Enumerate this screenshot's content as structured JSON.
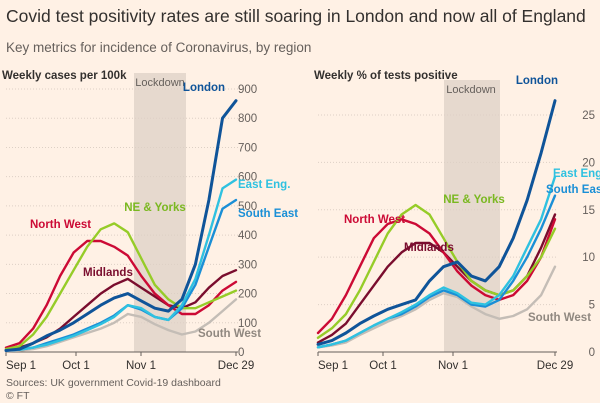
{
  "header": {
    "title": "Covid test positivity rates are still soaring in London and now all of England",
    "subtitle": "Key metrics for incidence of Coronavirus, by region"
  },
  "footer": {
    "source": "Sources: UK government Covid-19 dashboard",
    "credit": "© FT"
  },
  "colors": {
    "background": "#fff1e5",
    "lockdown_band": "#e6d9ce",
    "London": "#0f5499",
    "East Eng.": "#2fc1e0",
    "South East": "#1a8fd6",
    "NE & Yorks": "#96cc28",
    "North West": "#cc0a35",
    "Midlands": "#7a0d2e",
    "South West": "#c4bdb6"
  },
  "chart_data": [
    {
      "type": "line",
      "title": "Weekly cases per 100k",
      "annotation": "Lockdown",
      "x_ticks": [
        "Sep 1",
        "Oct 1",
        "Nov 1",
        "Dec 29"
      ],
      "y_ticks": [
        0,
        100,
        200,
        300,
        400,
        500,
        600,
        700,
        800,
        900
      ],
      "ylim": [
        0,
        900
      ],
      "x": [
        "Sep 1",
        "Sep 8",
        "Sep 15",
        "Sep 22",
        "Sep 29",
        "Oct 6",
        "Oct 13",
        "Oct 20",
        "Oct 27",
        "Nov 3",
        "Nov 10",
        "Nov 17",
        "Nov 24",
        "Dec 1",
        "Dec 8",
        "Dec 15",
        "Dec 22",
        "Dec 29"
      ],
      "series": [
        {
          "name": "London",
          "values": [
            5,
            10,
            30,
            55,
            75,
            100,
            130,
            160,
            185,
            200,
            175,
            150,
            140,
            180,
            300,
            520,
            800,
            860
          ]
        },
        {
          "name": "East Eng.",
          "values": [
            5,
            8,
            15,
            25,
            40,
            55,
            75,
            95,
            120,
            160,
            150,
            120,
            110,
            160,
            250,
            400,
            560,
            590
          ]
        },
        {
          "name": "South East",
          "values": [
            5,
            8,
            15,
            30,
            45,
            60,
            80,
            100,
            125,
            160,
            145,
            120,
            110,
            150,
            230,
            360,
            490,
            520
          ]
        },
        {
          "name": "NE & Yorks",
          "values": [
            10,
            20,
            60,
            120,
            200,
            280,
            360,
            420,
            440,
            410,
            320,
            230,
            180,
            150,
            150,
            170,
            190,
            210
          ]
        },
        {
          "name": "North West",
          "values": [
            15,
            30,
            80,
            160,
            260,
            340,
            380,
            380,
            360,
            330,
            260,
            200,
            160,
            130,
            130,
            160,
            210,
            240
          ]
        },
        {
          "name": "Midlands",
          "values": [
            10,
            15,
            30,
            50,
            80,
            120,
            160,
            200,
            230,
            250,
            220,
            190,
            160,
            150,
            170,
            220,
            260,
            280
          ]
        },
        {
          "name": "South West",
          "values": [
            3,
            5,
            10,
            20,
            35,
            50,
            65,
            80,
            100,
            130,
            120,
            95,
            75,
            60,
            70,
            100,
            140,
            180
          ]
        }
      ]
    },
    {
      "type": "line",
      "title": "Weekly % of tests positive",
      "annotation": "Lockdown",
      "x_ticks": [
        "Sep 1",
        "Oct 1",
        "Nov 1",
        "Dec 29"
      ],
      "y_ticks": [
        0,
        5,
        10,
        15,
        20,
        25
      ],
      "ylim": [
        0,
        27
      ],
      "x": [
        "Sep 1",
        "Sep 8",
        "Sep 15",
        "Sep 22",
        "Sep 29",
        "Oct 6",
        "Oct 13",
        "Oct 20",
        "Oct 27",
        "Nov 3",
        "Nov 10",
        "Nov 17",
        "Nov 24",
        "Dec 1",
        "Dec 8",
        "Dec 15",
        "Dec 22",
        "Dec 29"
      ],
      "series": [
        {
          "name": "London",
          "values": [
            0.8,
            1.2,
            2.0,
            3.0,
            3.8,
            4.5,
            5.0,
            5.5,
            7.5,
            9.0,
            9.5,
            8.0,
            7.5,
            9.0,
            12.0,
            16.0,
            21.0,
            26.5
          ]
        },
        {
          "name": "East Eng.",
          "values": [
            0.5,
            0.8,
            1.2,
            2.0,
            2.8,
            3.5,
            4.2,
            5.0,
            6.0,
            6.8,
            6.2,
            5.2,
            5.0,
            6.0,
            8.0,
            11.0,
            14.0,
            18.5
          ]
        },
        {
          "name": "South East",
          "values": [
            0.5,
            0.8,
            1.2,
            2.0,
            2.8,
            3.5,
            4.0,
            4.8,
            5.8,
            6.5,
            6.0,
            5.0,
            4.8,
            5.5,
            7.5,
            10.0,
            13.0,
            16.5
          ]
        },
        {
          "name": "NE & Yorks",
          "values": [
            1.5,
            2.5,
            4.0,
            6.5,
            9.5,
            12.5,
            14.5,
            15.5,
            14.5,
            12.0,
            9.5,
            7.5,
            6.5,
            6.0,
            6.5,
            8.0,
            10.0,
            13.0
          ]
        },
        {
          "name": "North West",
          "values": [
            2.0,
            3.5,
            6.0,
            9.0,
            12.0,
            13.5,
            14.0,
            13.5,
            12.5,
            10.5,
            8.5,
            7.0,
            6.0,
            5.5,
            6.0,
            7.5,
            10.0,
            14.0
          ]
        },
        {
          "name": "Midlands",
          "values": [
            1.0,
            1.8,
            3.0,
            5.0,
            7.0,
            9.0,
            10.5,
            11.5,
            11.5,
            10.5,
            9.0,
            7.5,
            6.5,
            6.0,
            6.5,
            8.0,
            11.0,
            14.5
          ]
        },
        {
          "name": "South West",
          "values": [
            0.5,
            0.7,
            1.0,
            1.8,
            2.5,
            3.2,
            3.8,
            4.5,
            5.5,
            6.2,
            5.8,
            4.8,
            4.0,
            3.5,
            3.8,
            4.5,
            6.0,
            9.0
          ]
        }
      ]
    }
  ],
  "labels": {
    "left": [
      {
        "text": "London",
        "color": "#0f5499"
      },
      {
        "text": "East Eng.",
        "color": "#2fc1e0"
      },
      {
        "text": "South East",
        "color": "#1a8fd6"
      },
      {
        "text": "NE & Yorks",
        "color": "#7ab820"
      },
      {
        "text": "North West",
        "color": "#cc0a35"
      },
      {
        "text": "Midlands",
        "color": "#7a0d2e"
      },
      {
        "text": "South West",
        "color": "#908880"
      }
    ],
    "right": [
      {
        "text": "London",
        "color": "#0f5499"
      },
      {
        "text": "East Eng.",
        "color": "#2fc1e0"
      },
      {
        "text": "South East",
        "color": "#1a8fd6"
      },
      {
        "text": "NE & Yorks",
        "color": "#7ab820"
      },
      {
        "text": "North West",
        "color": "#cc0a35"
      },
      {
        "text": "Midlands",
        "color": "#7a0d2e"
      },
      {
        "text": "South West",
        "color": "#908880"
      }
    ]
  }
}
